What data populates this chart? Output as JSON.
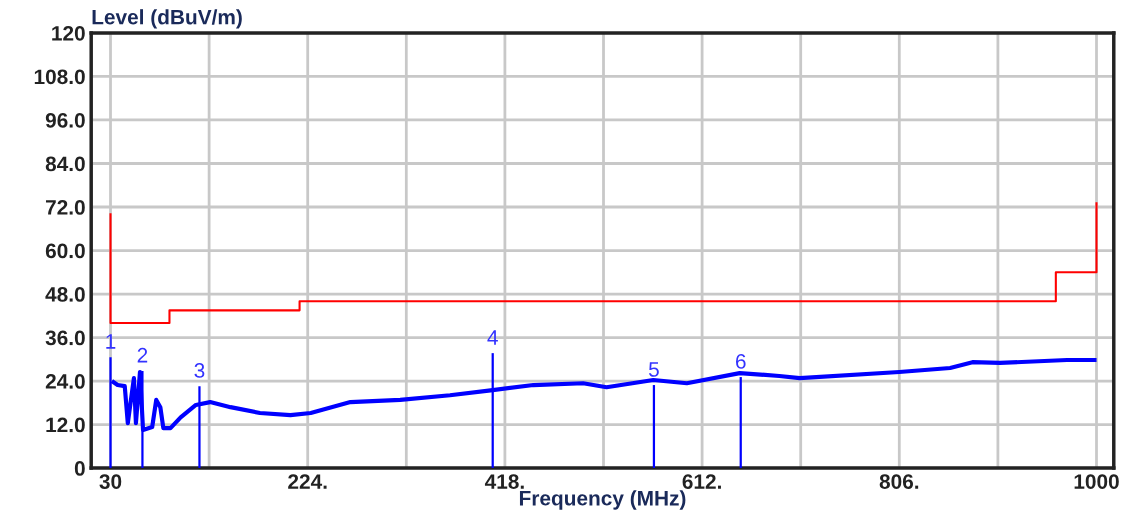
{
  "chart_data": {
    "type": "line",
    "xlabel": "Frequency (MHz)",
    "ylabel": "Level (dBuV/m)",
    "xlim": [
      11,
      1017
    ],
    "ylim": [
      0,
      120
    ],
    "xticks": [
      30,
      {
        "value": 127,
        "label": null
      },
      {
        "value": 224,
        "label": "224."
      },
      {
        "value": 321,
        "label": null
      },
      {
        "value": 418,
        "label": "418."
      },
      {
        "value": 515,
        "label": null
      },
      {
        "value": 612,
        "label": "612."
      },
      {
        "value": 709,
        "label": null
      },
      {
        "value": 806,
        "label": "806."
      },
      {
        "value": 903,
        "label": null
      },
      1000
    ],
    "yticks": [
      0,
      {
        "value": 12,
        "label": "12.0"
      },
      {
        "value": 24,
        "label": "24.0"
      },
      {
        "value": 36,
        "label": "36.0"
      },
      {
        "value": 48,
        "label": "48.0"
      },
      {
        "value": 60,
        "label": "60.0"
      },
      {
        "value": 72,
        "label": "72.0"
      },
      {
        "value": 84,
        "label": "84.0"
      },
      {
        "value": 96,
        "label": "96.0"
      },
      {
        "value": 108,
        "label": "108.0"
      },
      120
    ],
    "grid": true,
    "marker": "none",
    "line_style": "solid",
    "series": [
      {
        "color": "#ff0000",
        "x": [
          30,
          30,
          88,
          88,
          216,
          216,
          960,
          960,
          1000,
          1000
        ],
        "values": [
          70,
          40,
          40,
          43.5,
          43.5,
          46,
          46,
          54,
          54,
          73
        ]
      },
      {
        "color": "#0000ff",
        "x": [
          33,
          37,
          44,
          47,
          53,
          55,
          59,
          62,
          71,
          75,
          79,
          82,
          89,
          99,
          114,
          128,
          148,
          177,
          207,
          227,
          266,
          315,
          364,
          406,
          446,
          495,
          518,
          564,
          597,
          649,
          688,
          708,
          806,
          856,
          878,
          905,
          971,
          998
        ],
        "values": [
          23.7,
          22.9,
          22.6,
          12.4,
          24.8,
          12.4,
          26.5,
          10.5,
          11.3,
          18.8,
          16.8,
          11.0,
          11.0,
          14.0,
          17.4,
          18.2,
          16.8,
          15.2,
          14.6,
          15.2,
          18.2,
          18.8,
          20.1,
          21.5,
          22.9,
          23.4,
          22.3,
          24.3,
          23.4,
          26.2,
          25.4,
          24.8,
          26.5,
          27.6,
          29.2,
          29.0,
          29.8,
          29.8
        ]
      },
      {
        "type": "bar",
        "color": "#0000ff",
        "x": [
          30,
          61.4,
          117.5,
          406,
          564.6,
          650
        ],
        "values": [
          30.6,
          26.8,
          22.6,
          31.7,
          22.9,
          25.1
        ]
      }
    ],
    "annotations": [
      {
        "text": "1",
        "x": 30,
        "y": 30.6
      },
      {
        "text": "2",
        "x": 61.4,
        "y": 26.8
      },
      {
        "text": "3",
        "x": 117.5,
        "y": 22.6
      },
      {
        "text": "4",
        "x": 406,
        "y": 31.7
      },
      {
        "text": "5",
        "x": 564.6,
        "y": 22.9
      },
      {
        "text": "6",
        "x": 650,
        "y": 25.1
      }
    ]
  }
}
